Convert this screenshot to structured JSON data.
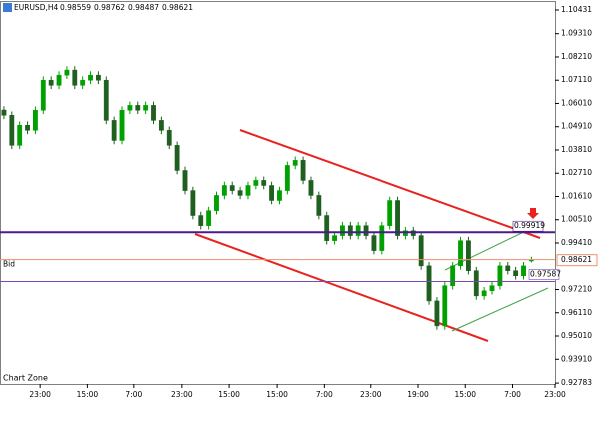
{
  "chart_data": {
    "type": "candlestick",
    "title": "EURUSD,H4",
    "watermark": "Chart Zone",
    "up_color": "#00a000",
    "down_color": "#1f5f1f",
    "open": [
      1.057,
      1.0545,
      1.0403,
      1.0498,
      1.0474,
      1.0569,
      1.0711,
      1.0687,
      1.0735,
      1.0759,
      1.0687,
      1.0711,
      1.0735,
      1.0711,
      1.0521,
      1.0426,
      1.0569,
      1.0592,
      1.0569,
      1.0592,
      1.0521,
      1.0474,
      1.0403,
      1.0284,
      1.0189,
      1.0071,
      1.0023,
      1.0094,
      1.0166,
      1.0213,
      1.0189,
      1.0166,
      1.0213,
      1.0237,
      1.0213,
      1.0142,
      1.0189,
      1.0308,
      1.0332,
      1.0237,
      1.0166,
      1.0071,
      0.9952,
      0.9976,
      1.0023,
      0.9976,
      1.0023,
      0.9976,
      0.9905,
      1.0023,
      1.0142,
      0.9976,
      0.9999,
      0.9976,
      0.9833,
      0.9667,
      0.9549,
      0.9739,
      0.9833,
      0.9952,
      0.981,
      0.9691,
      0.9715,
      0.9739,
      0.9833,
      0.981,
      0.9786,
      0.98559
    ],
    "high": [
      1.0588,
      1.0563,
      1.0516,
      1.0516,
      1.0587,
      1.0729,
      1.0729,
      1.0753,
      1.0777,
      1.0777,
      1.0729,
      1.0753,
      1.0753,
      1.0729,
      1.0539,
      1.0587,
      1.061,
      1.061,
      1.061,
      1.061,
      1.0539,
      1.0492,
      1.0421,
      1.0302,
      1.0207,
      1.0089,
      1.0112,
      1.0184,
      1.0231,
      1.0231,
      1.0207,
      1.0231,
      1.0255,
      1.0255,
      1.0231,
      1.0207,
      1.0326,
      1.035,
      1.035,
      1.0255,
      1.0184,
      1.0089,
      0.9994,
      1.0041,
      1.0041,
      1.0041,
      1.0041,
      0.9994,
      1.0041,
      1.016,
      1.016,
      1.0017,
      1.0017,
      0.9994,
      0.9851,
      0.9685,
      0.9757,
      0.9851,
      0.997,
      0.997,
      0.9828,
      0.9733,
      0.9757,
      0.9851,
      0.9851,
      0.9828,
      0.9851,
      0.98762
    ],
    "low": [
      1.0527,
      1.0385,
      1.0385,
      1.0456,
      1.0456,
      1.0551,
      1.0669,
      1.0669,
      1.0717,
      1.0669,
      1.0669,
      1.0693,
      1.0693,
      1.0503,
      1.0408,
      1.0408,
      1.0551,
      1.0551,
      1.0551,
      1.0503,
      1.0456,
      1.0385,
      1.0266,
      1.0171,
      1.0053,
      1.0005,
      1.0005,
      1.0076,
      1.0148,
      1.0171,
      1.0148,
      1.0148,
      1.0195,
      1.0195,
      1.0124,
      1.0124,
      1.0171,
      1.029,
      1.0219,
      1.0148,
      1.0053,
      0.9934,
      0.9934,
      0.9958,
      0.9958,
      0.9958,
      0.9958,
      0.9887,
      0.9887,
      1.0005,
      0.9958,
      0.9958,
      0.9958,
      0.9815,
      0.9649,
      0.9531,
      0.9531,
      0.9721,
      0.9815,
      0.9792,
      0.9673,
      0.9673,
      0.9697,
      0.9721,
      0.9792,
      0.9768,
      0.9768,
      0.98487
    ],
    "close": [
      1.0545,
      1.0403,
      1.0498,
      1.0474,
      1.0569,
      1.0711,
      1.0687,
      1.0735,
      1.0759,
      1.0687,
      1.0711,
      1.0735,
      1.0711,
      1.0521,
      1.0426,
      1.0569,
      1.0592,
      1.0569,
      1.0592,
      1.0521,
      1.0474,
      1.0403,
      1.0284,
      1.0189,
      1.0071,
      1.0023,
      1.0094,
      1.0166,
      1.0213,
      1.0189,
      1.0166,
      1.0213,
      1.0237,
      1.0213,
      1.0142,
      1.0189,
      1.0308,
      1.0332,
      1.0237,
      1.0166,
      1.0071,
      0.9952,
      0.9976,
      1.0023,
      0.9976,
      1.0023,
      0.9976,
      0.9905,
      1.0023,
      1.0142,
      0.9976,
      0.9999,
      0.9976,
      0.9833,
      0.9667,
      0.9549,
      0.9739,
      0.9833,
      0.9952,
      0.981,
      0.9691,
      0.9715,
      0.9739,
      0.9833,
      0.981,
      0.9786,
      0.9833,
      0.98621
    ],
    "xlim": [
      -0.5,
      70
    ],
    "xticks": [
      {
        "value": 4.6,
        "label": "23:00"
      },
      {
        "value": 10.6,
        "label": "15:00"
      },
      {
        "value": 16.5,
        "label": "7:00"
      },
      {
        "value": 22.6,
        "label": "23:00"
      },
      {
        "value": 28.6,
        "label": "15:00"
      },
      {
        "value": 34.7,
        "label": "15:00"
      },
      {
        "value": 40.7,
        "label": "7:00"
      },
      {
        "value": 46.6,
        "label": "23:00"
      },
      {
        "value": 52.6,
        "label": "19:00"
      },
      {
        "value": 58.6,
        "label": "15:00"
      },
      {
        "value": 64.6,
        "label": "7:00"
      },
      {
        "value": 70,
        "label": "23:00"
      }
    ],
    "ylim": [
      0.9274,
      1.1081
    ],
    "yticks": [
      1.10431,
      {
        "value": 1.0931,
        "label": "1.09310"
      },
      {
        "value": 1.0821,
        "label": "1.08210"
      },
      {
        "value": 1.0711,
        "label": "1.07110"
      },
      {
        "value": 1.0601,
        "label": "1.06010"
      },
      {
        "value": 1.0491,
        "label": "1.04910"
      },
      {
        "value": 1.0381,
        "label": "1.03810"
      },
      {
        "value": 1.0271,
        "label": "1.02710"
      },
      {
        "value": 1.0161,
        "label": "1.01610"
      },
      {
        "value": 1.0051,
        "label": "1.00510"
      },
      {
        "value": 0.9941,
        "label": "0.99410"
      },
      {
        "value": 0.9721,
        "label": "0.97210"
      },
      {
        "value": 0.9611,
        "label": "0.96110"
      },
      {
        "value": 0.9501,
        "label": "0.95010"
      },
      {
        "value": 0.9391,
        "label": "0.93910"
      },
      0.92783
    ],
    "grid": false,
    "levels": [
      {
        "value": 0.99919,
        "color": "#4b1a8c",
        "width": 2
      },
      {
        "value": 0.97587,
        "color": "#7a4ab0",
        "width": 1
      }
    ],
    "bid": {
      "label": "Bid",
      "value": 0.98621,
      "color": "#f0906a"
    }
  }
}
